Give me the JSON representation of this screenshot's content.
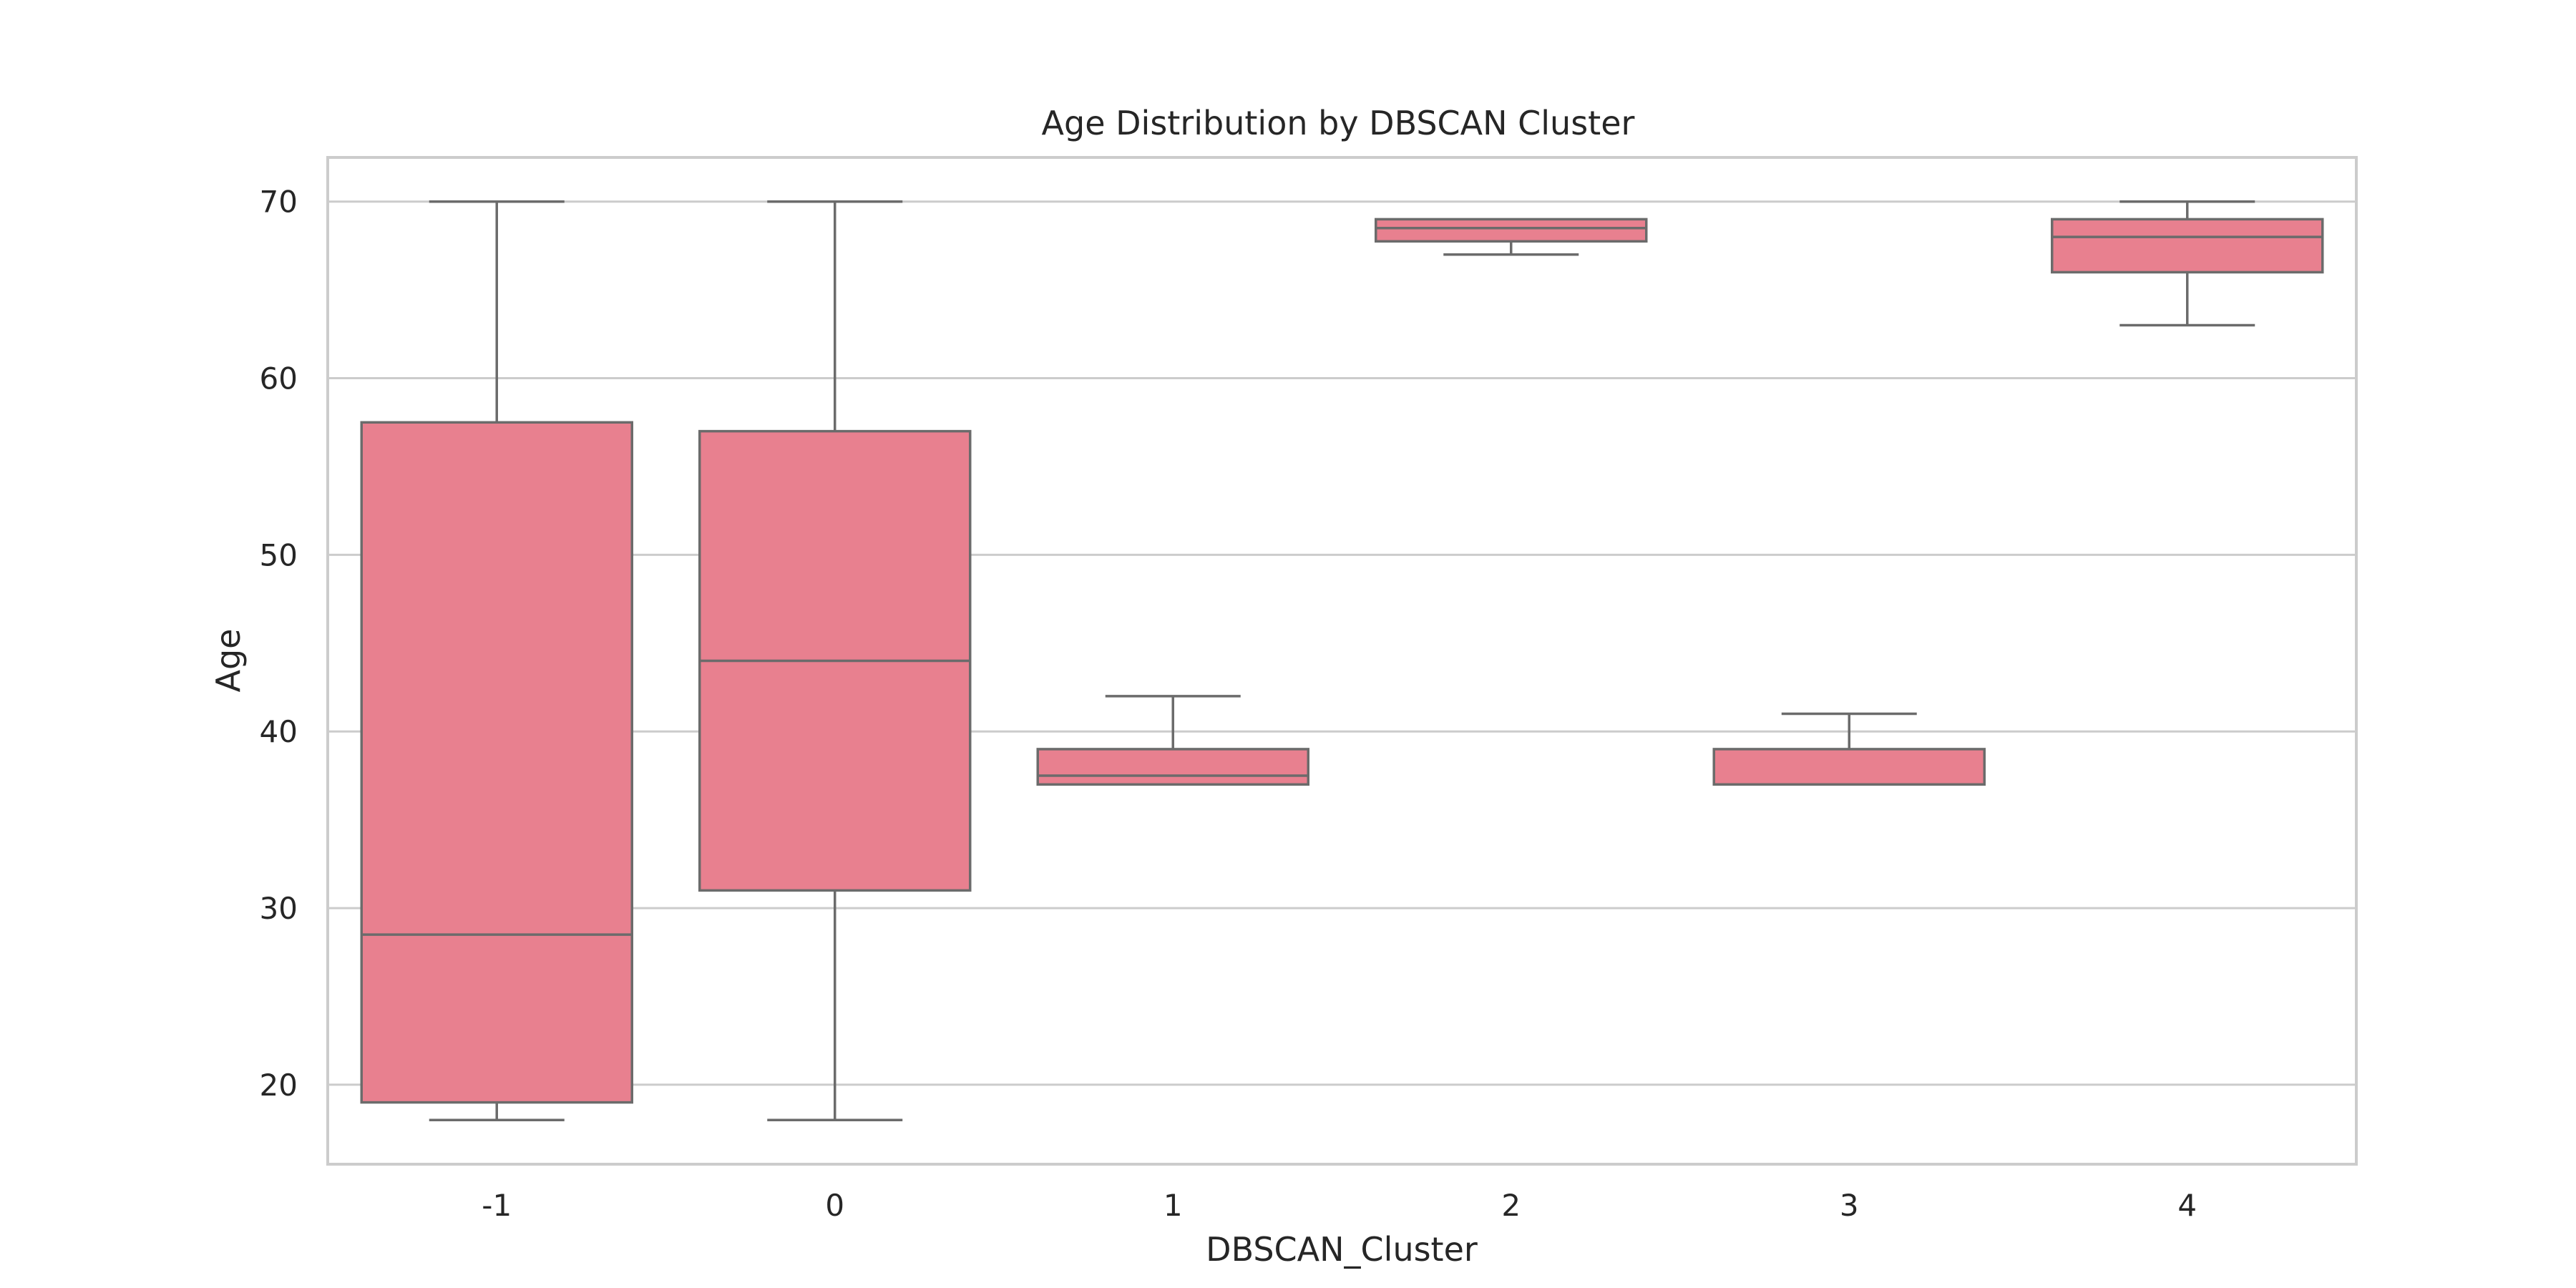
{
  "chart_data": {
    "type": "box",
    "title": "Age Distribution by DBSCAN Cluster",
    "xlabel": "DBSCAN_Cluster",
    "ylabel": "Age",
    "ylim": [
      15.5,
      72.5
    ],
    "yticks": [
      20,
      30,
      40,
      50,
      60,
      70
    ],
    "grid": true,
    "box_color": "#e8808f",
    "line_color": "#6b6b6b",
    "categories": [
      "-1",
      "0",
      "1",
      "2",
      "3",
      "4"
    ],
    "boxes": [
      {
        "category": "-1",
        "whisker_low": 18,
        "q1": 19,
        "median": 28.5,
        "q3": 57.5,
        "whisker_high": 70
      },
      {
        "category": "0",
        "whisker_low": 18,
        "q1": 31,
        "median": 44,
        "q3": 57,
        "whisker_high": 70
      },
      {
        "category": "1",
        "whisker_low": 37,
        "q1": 37,
        "median": 37.5,
        "q3": 39,
        "whisker_high": 42
      },
      {
        "category": "2",
        "whisker_low": 67,
        "q1": 67.75,
        "median": 68.5,
        "q3": 69,
        "whisker_high": 69
      },
      {
        "category": "3",
        "whisker_low": 37,
        "q1": 37,
        "median": 37,
        "q3": 39,
        "whisker_high": 41
      },
      {
        "category": "4",
        "whisker_low": 63,
        "q1": 66,
        "median": 68,
        "q3": 69,
        "whisker_high": 70
      }
    ]
  }
}
